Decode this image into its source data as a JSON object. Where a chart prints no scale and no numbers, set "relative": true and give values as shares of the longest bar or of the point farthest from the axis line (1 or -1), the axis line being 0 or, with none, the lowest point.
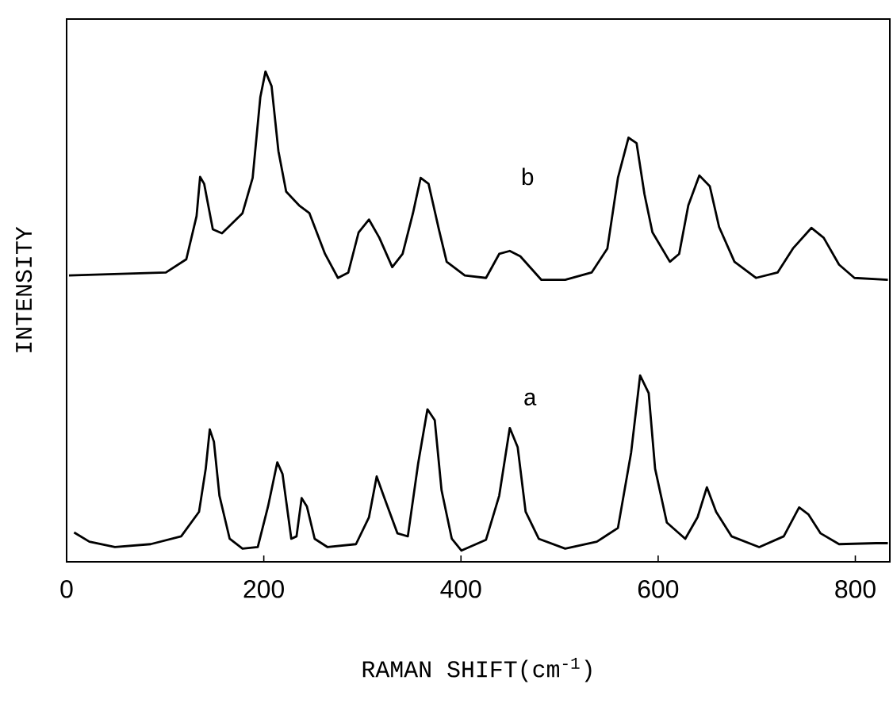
{
  "chart_data": {
    "type": "line",
    "relative": true,
    "xlabel": "RAMAN SHIFT(cm$^{-1}$)",
    "ylabel": "INTENSITY",
    "xlim": [
      0,
      835
    ],
    "xticks": [
      0,
      200,
      400,
      600,
      800
    ],
    "series": [
      {
        "name": "a",
        "color": "#000000",
        "x": [
          7.6,
          23.1,
          49.0,
          85.2,
          116.2,
          134.3,
          141.1,
          145.2,
          149.4,
          155.0,
          165.4,
          178.4,
          193.9,
          204.3,
          213.7,
          219.0,
          227.9,
          233.2,
          238.4,
          243.7,
          251.6,
          264.7,
          293.5,
          306.7,
          314.5,
          322.4,
          335.6,
          346.1,
          356.6,
          366.0,
          373.4,
          380.3,
          390.7,
          400.5,
          425.4,
          438.8,
          449.5,
          457.5,
          465.6,
          478.9,
          505.7,
          537.8,
          559.2,
          572.6,
          581.7,
          590.4,
          596.9,
          608.8,
          627.5,
          640.0,
          649.4,
          658.8,
          674.4,
          702.5,
          727.4,
          743.0,
          752.3,
          764.8,
          783.5,
          821,
          833
        ],
        "values": [
          0.06,
          0.041,
          0.03,
          0.036,
          0.052,
          0.102,
          0.19,
          0.27,
          0.245,
          0.135,
          0.047,
          0.027,
          0.03,
          0.113,
          0.203,
          0.179,
          0.047,
          0.052,
          0.13,
          0.113,
          0.047,
          0.03,
          0.036,
          0.091,
          0.174,
          0.13,
          0.058,
          0.052,
          0.201,
          0.311,
          0.289,
          0.146,
          0.047,
          0.023,
          0.045,
          0.135,
          0.273,
          0.234,
          0.102,
          0.047,
          0.027,
          0.041,
          0.069,
          0.223,
          0.38,
          0.344,
          0.19,
          0.08,
          0.047,
          0.091,
          0.152,
          0.102,
          0.052,
          0.03,
          0.052,
          0.111,
          0.097,
          0.058,
          0.036,
          0.038,
          0.038
        ]
      },
      {
        "name": "b",
        "color": "#000000",
        "x": [
          2.4,
          100.7,
          121.4,
          131.8,
          135.4,
          139.5,
          148.3,
          157.6,
          178.4,
          188.7,
          196.5,
          201.7,
          207.9,
          214.8,
          222.7,
          235.8,
          246.3,
          262.1,
          275.2,
          285.7,
          296.2,
          306.7,
          317.2,
          330.3,
          340.8,
          351.3,
          359.1,
          367.1,
          377.6,
          385.5,
          403.9,
          425.4,
          438.8,
          449.5,
          460.2,
          481.6,
          505.7,
          532.5,
          548.5,
          559.2,
          569.9,
          578.1,
          586.1,
          594.2,
          611.9,
          621.3,
          630.6,
          641.8,
          652.4,
          661.8,
          677.4,
          699.2,
          721.1,
          736.7,
          755.4,
          767.9,
          783.5,
          799.1,
          833
        ],
        "values": [
          0.584,
          0.59,
          0.617,
          0.705,
          0.785,
          0.771,
          0.678,
          0.67,
          0.711,
          0.783,
          0.948,
          1,
          0.97,
          0.838,
          0.755,
          0.727,
          0.711,
          0.628,
          0.579,
          0.59,
          0.672,
          0.698,
          0.661,
          0.601,
          0.628,
          0.711,
          0.783,
          0.771,
          0.678,
          0.612,
          0.584,
          0.579,
          0.628,
          0.634,
          0.623,
          0.575,
          0.575,
          0.59,
          0.639,
          0.783,
          0.865,
          0.854,
          0.75,
          0.672,
          0.612,
          0.628,
          0.727,
          0.788,
          0.766,
          0.683,
          0.612,
          0.579,
          0.59,
          0.639,
          0.681,
          0.661,
          0.606,
          0.579,
          0.575
        ]
      }
    ]
  }
}
